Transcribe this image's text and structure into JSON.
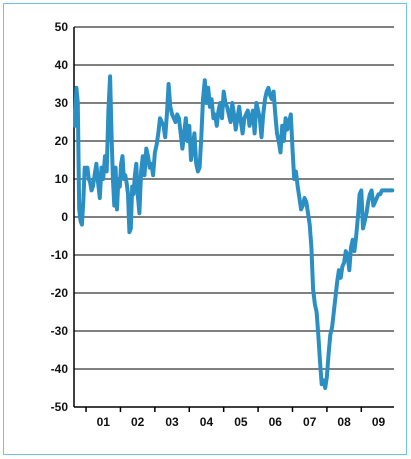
{
  "chart_data": {
    "type": "line",
    "title": "",
    "xlabel": "",
    "ylabel": "",
    "ylim": [
      -50,
      50
    ],
    "xlim": [
      2000.65,
      2009.95
    ],
    "y_ticks": [
      50,
      40,
      30,
      20,
      10,
      0,
      -10,
      -20,
      -30,
      -40,
      -50
    ],
    "x_tick_labels": [
      "01",
      "02",
      "03",
      "04",
      "05",
      "06",
      "07",
      "08",
      "09"
    ],
    "grid": true,
    "legend": "none",
    "colors": {
      "series": "#2b8fc4",
      "frame": "#6fc3ea",
      "grid": "#000000"
    },
    "series": [
      {
        "x": [
          2000.68,
          2000.72,
          2000.76,
          2000.8,
          2000.84,
          2000.88,
          2000.92,
          2000.96,
          2001.0,
          2001.04,
          2001.08,
          2001.12,
          2001.16,
          2001.2,
          2001.25,
          2001.3,
          2001.35,
          2001.4,
          2001.45,
          2001.5,
          2001.55,
          2001.6,
          2001.65,
          2001.7,
          2001.74,
          2001.78,
          2001.82,
          2001.86,
          2001.9,
          2001.94,
          2001.98,
          2002.02,
          2002.06,
          2002.1,
          2002.14,
          2002.18,
          2002.22,
          2002.26,
          2002.3,
          2002.34,
          2002.38,
          2002.42,
          2002.46,
          2002.5,
          2002.55,
          2002.6,
          2002.65,
          2002.7,
          2002.75,
          2002.8,
          2002.85,
          2002.9,
          2002.95,
          2003.0,
          2003.05,
          2003.1,
          2003.15,
          2003.2,
          2003.25,
          2003.3,
          2003.35,
          2003.4,
          2003.45,
          2003.5,
          2003.55,
          2003.6,
          2003.65,
          2003.7,
          2003.75,
          2003.8,
          2003.85,
          2003.9,
          2003.95,
          2004.0,
          2004.05,
          2004.1,
          2004.15,
          2004.2,
          2004.25,
          2004.3,
          2004.35,
          2004.4,
          2004.45,
          2004.5,
          2004.55,
          2004.6,
          2004.65,
          2004.7,
          2004.75,
          2004.8,
          2004.85,
          2004.9,
          2004.95,
          2005.0,
          2005.05,
          2005.1,
          2005.15,
          2005.2,
          2005.25,
          2005.3,
          2005.35,
          2005.4,
          2005.45,
          2005.5,
          2005.55,
          2005.6,
          2005.65,
          2005.7,
          2005.75,
          2005.8,
          2005.85,
          2005.9,
          2005.95,
          2006.0,
          2006.05,
          2006.1,
          2006.15,
          2006.2,
          2006.25,
          2006.3,
          2006.35,
          2006.4,
          2006.45,
          2006.5,
          2006.55,
          2006.6,
          2006.65,
          2006.7,
          2006.75,
          2006.8,
          2006.85,
          2006.9,
          2006.95,
          2007.0,
          2007.05,
          2007.1,
          2007.15,
          2007.2,
          2007.25,
          2007.3,
          2007.35,
          2007.4,
          2007.45,
          2007.5,
          2007.55,
          2007.6,
          2007.65,
          2007.7,
          2007.75,
          2007.8,
          2007.85,
          2007.9,
          2007.95,
          2008.0,
          2008.05,
          2008.1,
          2008.15,
          2008.2,
          2008.25,
          2008.3,
          2008.35,
          2008.4,
          2008.45,
          2008.5,
          2008.55,
          2008.6,
          2008.65,
          2008.7,
          2008.75,
          2008.8,
          2008.85,
          2008.9,
          2008.95,
          2009.0,
          2009.05,
          2009.1,
          2009.15,
          2009.2,
          2009.25,
          2009.3,
          2009.35,
          2009.4,
          2009.45,
          2009.5,
          2009.55,
          2009.6,
          2009.65,
          2009.7,
          2009.75,
          2009.8,
          2009.85,
          2009.9
        ],
        "y": [
          24,
          34,
          30,
          2,
          -1,
          -2,
          4,
          13,
          12,
          13,
          10,
          9,
          7,
          8,
          11,
          14,
          9,
          5,
          13,
          10,
          16,
          12,
          28,
          37,
          22,
          10,
          3,
          13,
          2,
          10,
          8,
          14,
          16,
          10,
          11,
          9,
          6,
          -4,
          -3,
          8,
          6,
          11,
          14,
          6,
          1,
          12,
          16,
          11,
          18,
          16,
          13,
          14,
          11,
          17,
          19,
          22,
          26,
          25,
          24,
          21,
          27,
          35,
          29,
          27,
          26,
          25,
          27,
          26,
          22,
          18,
          22,
          26,
          20,
          24,
          15,
          18,
          22,
          14,
          12,
          13,
          21,
          31,
          36,
          30,
          34,
          29,
          31,
          26,
          27,
          24,
          28,
          30,
          26,
          33,
          30,
          29,
          27,
          25,
          30,
          27,
          23,
          26,
          29,
          25,
          22,
          26,
          27,
          28,
          24,
          26,
          28,
          22,
          30,
          28,
          26,
          21,
          27,
          31,
          33,
          34,
          32,
          31,
          33,
          27,
          22,
          20,
          17,
          24,
          20,
          26,
          23,
          25,
          27,
          18,
          10,
          12,
          8,
          5,
          2,
          3,
          5,
          4,
          1,
          -2,
          -8,
          -19,
          -23,
          -25,
          -31,
          -38,
          -44,
          -43,
          -45,
          -42,
          -36,
          -31,
          -29,
          -25,
          -21,
          -17,
          -14,
          -16,
          -13,
          -12,
          -9,
          -10,
          -14,
          -8,
          -6,
          -9,
          -5,
          0,
          6,
          7,
          -3,
          -1,
          1,
          4,
          6,
          7,
          3,
          4,
          5,
          6,
          6,
          7,
          7,
          7,
          7,
          7,
          7,
          7
        ],
        "color": "#2b8fc4"
      }
    ]
  }
}
